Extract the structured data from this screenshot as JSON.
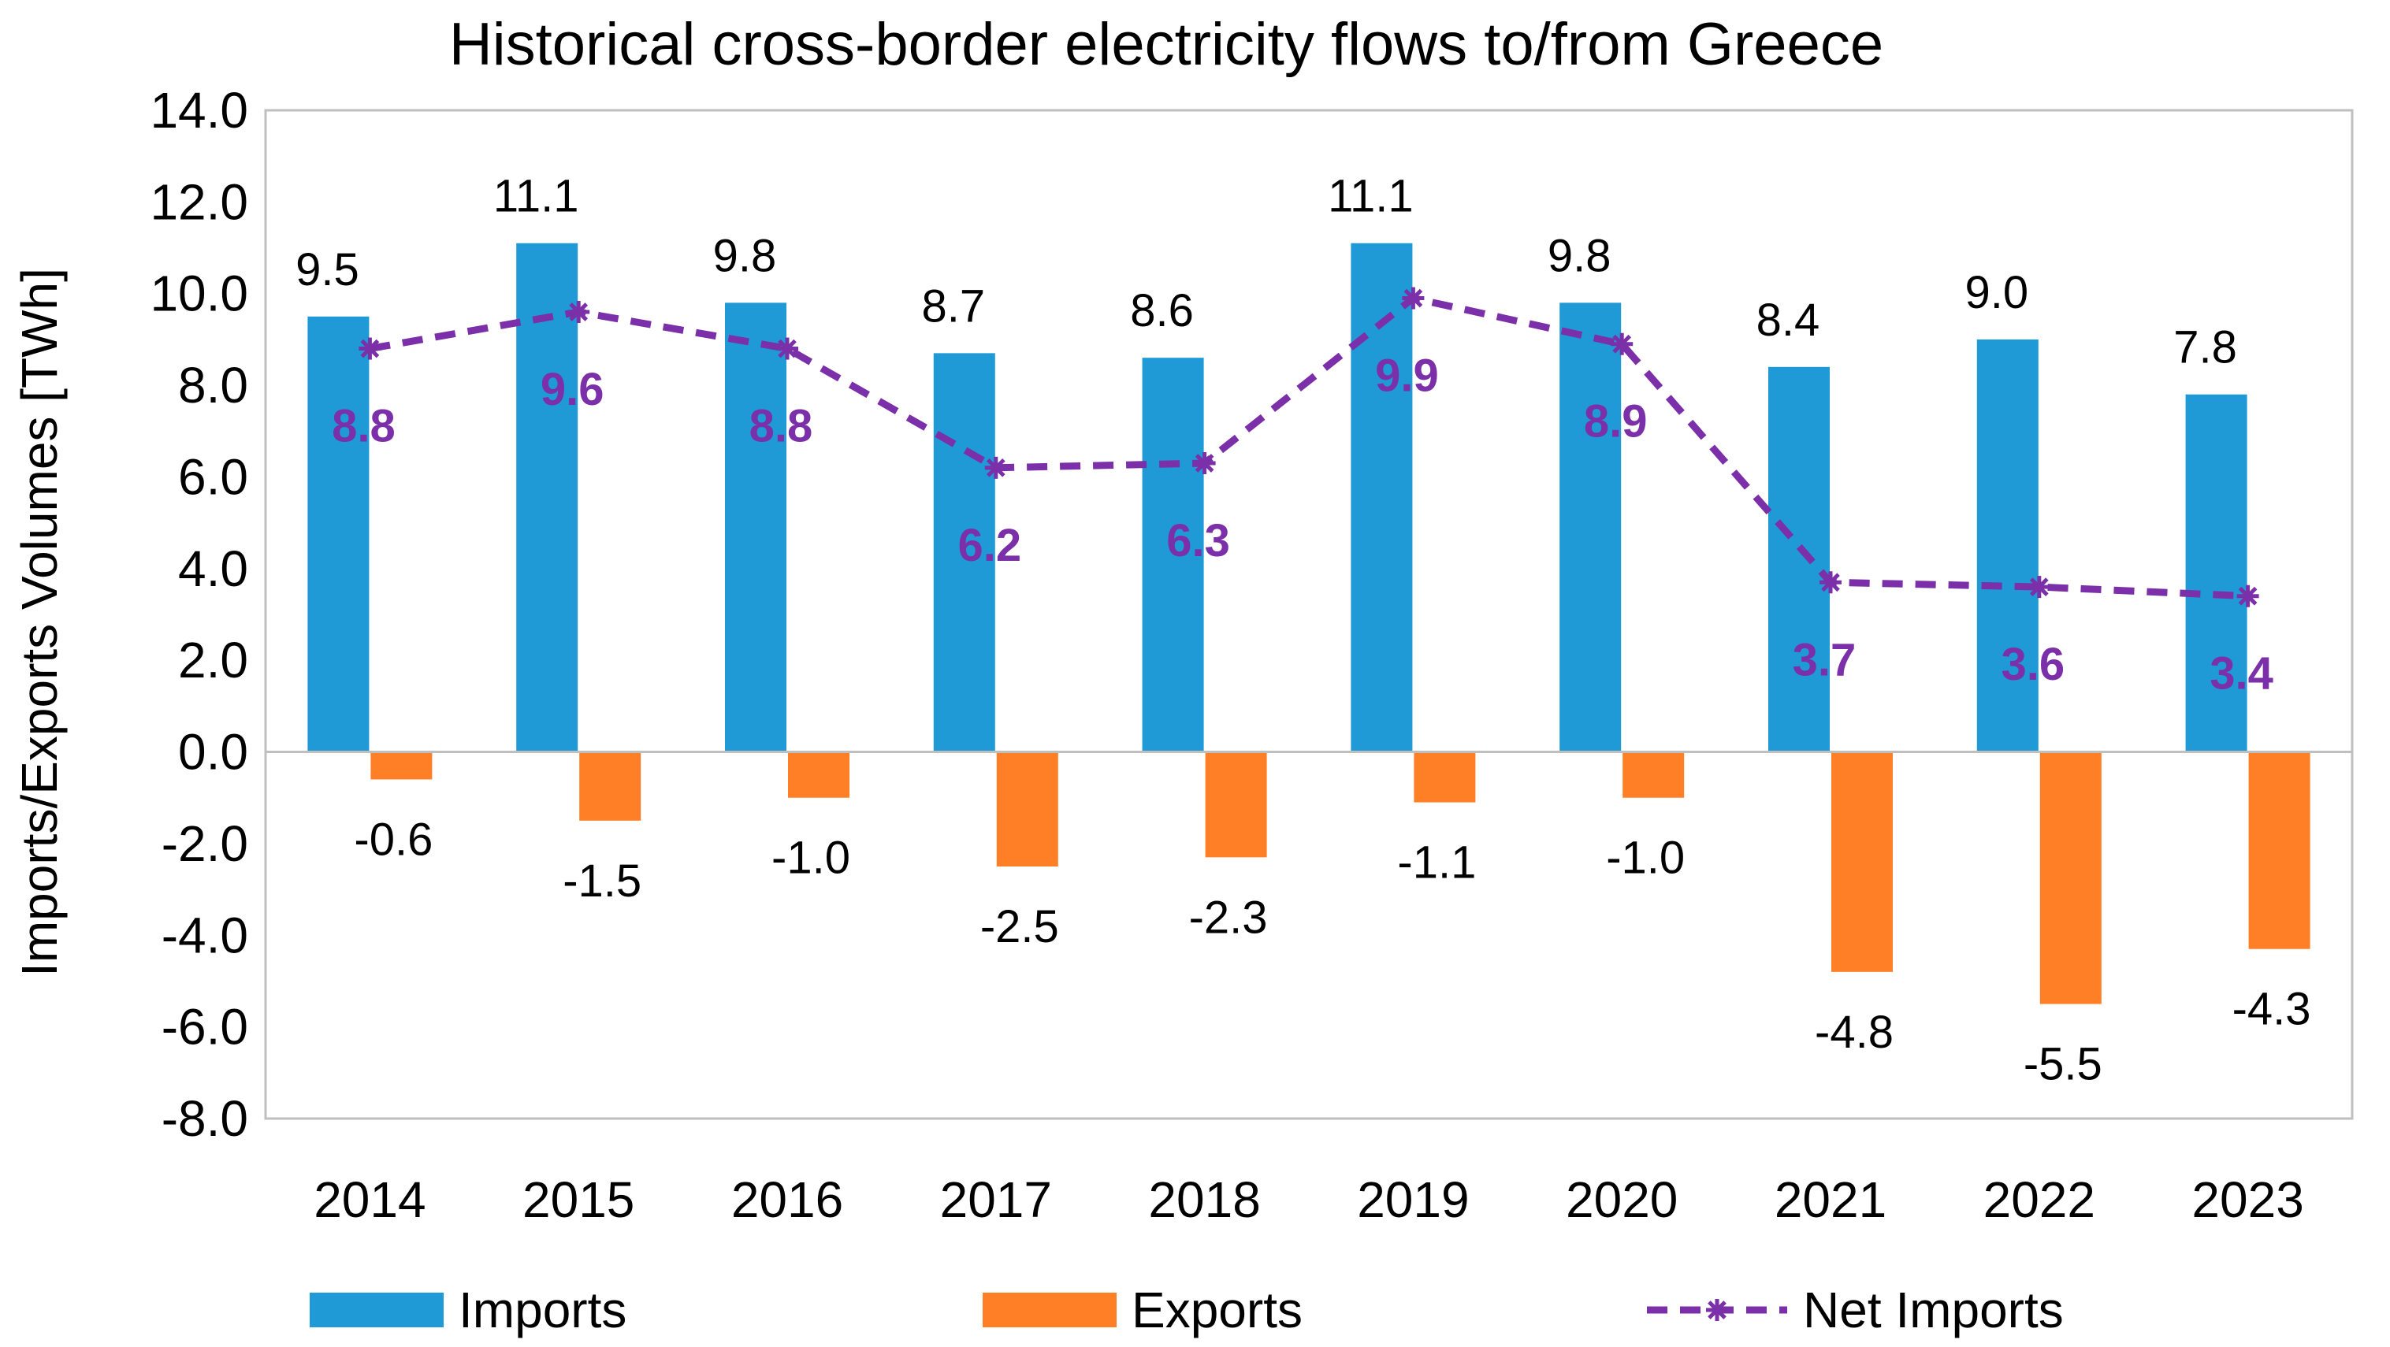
{
  "chart_data": {
    "type": "bar",
    "title": "Historical cross-border electricity flows to/from Greece",
    "xlabel": "",
    "ylabel": "Imports/Exports Volumes [TWh]",
    "ylim": [
      -8.0,
      14.0
    ],
    "ytick_step": 2.0,
    "yticks": [
      "-8.0",
      "-6.0",
      "-4.0",
      "-2.0",
      "0.0",
      "2.0",
      "4.0",
      "6.0",
      "8.0",
      "10.0",
      "12.0",
      "14.0"
    ],
    "grid": false,
    "categories": [
      "2014",
      "2015",
      "2016",
      "2017",
      "2018",
      "2019",
      "2020",
      "2021",
      "2022",
      "2023"
    ],
    "series": [
      {
        "name": "Imports",
        "kind": "bar",
        "color": "#1f9ad6",
        "values": [
          9.5,
          11.1,
          9.8,
          8.7,
          8.6,
          11.1,
          9.8,
          8.4,
          9.0,
          7.8
        ],
        "labels": [
          "9.5",
          "11.1",
          "9.8",
          "8.7",
          "8.6",
          "11.1",
          "9.8",
          "8.4",
          "9.0",
          "7.8"
        ]
      },
      {
        "name": "Exports",
        "kind": "bar",
        "color": "#ff7f27",
        "values": [
          -0.6,
          -1.5,
          -1.0,
          -2.5,
          -2.3,
          -1.1,
          -1.0,
          -4.8,
          -5.5,
          -4.3
        ],
        "labels": [
          "-0.6",
          "-1.5",
          "-1.0",
          "-2.5",
          "-2.3",
          "-1.1",
          "-1.0",
          "-4.8",
          "-5.5",
          "-4.3"
        ]
      },
      {
        "name": "Net Imports",
        "kind": "line",
        "style": "dashed",
        "marker": "asterisk",
        "color": "#7b2fa8",
        "values": [
          8.8,
          9.6,
          8.8,
          6.2,
          6.3,
          9.9,
          8.9,
          3.7,
          3.6,
          3.4
        ],
        "labels": [
          "8.8",
          "9.6",
          "8.8",
          "6.2",
          "6.3",
          "9.9",
          "8.9",
          "3.7",
          "3.6",
          "3.4"
        ]
      }
    ],
    "legend": {
      "position": "bottom",
      "items": [
        "Imports",
        "Exports",
        "Net Imports"
      ]
    },
    "colors": {
      "axis": "#bfbfbf",
      "text": "#000000",
      "background": "#ffffff"
    }
  }
}
